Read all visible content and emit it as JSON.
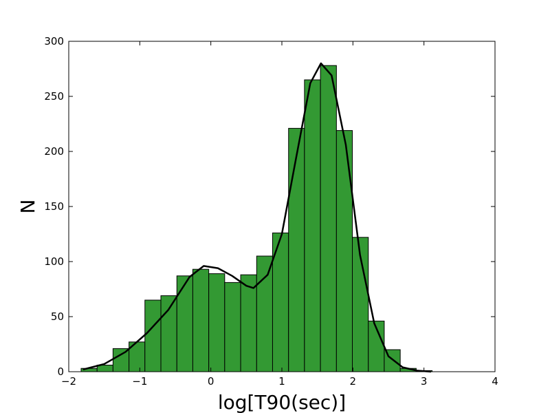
{
  "chart_data": {
    "type": "histogram",
    "xlabel": "log[T90(sec)]",
    "ylabel": "N",
    "bins": [
      -1.826,
      -1.601,
      -1.377,
      -1.152,
      -0.928,
      -0.703,
      -0.478,
      -0.254,
      -0.029,
      0.195,
      0.42,
      0.645,
      0.869,
      1.094,
      1.318,
      1.543,
      1.768,
      1.992,
      2.217,
      2.441,
      2.666,
      2.891,
      3.115
    ],
    "counts": [
      3,
      6,
      21,
      27,
      65,
      69,
      87,
      93,
      89,
      81,
      88,
      105,
      126,
      221,
      265,
      278,
      219,
      122,
      46,
      20,
      3,
      1
    ],
    "color": "#339933",
    "edgecolor": "#000000",
    "line": {
      "color": "#000000",
      "x": [
        -1.8,
        -1.5,
        -1.2,
        -0.9,
        -0.6,
        -0.3,
        -0.1,
        0.1,
        0.3,
        0.5,
        0.6,
        0.8,
        1.0,
        1.2,
        1.4,
        1.55,
        1.7,
        1.9,
        2.1,
        2.3,
        2.5,
        2.7,
        2.9,
        3.1
      ],
      "y": [
        2,
        7,
        18,
        35,
        56,
        86,
        96,
        94,
        87,
        78,
        76,
        88,
        125,
        194,
        262,
        280,
        269,
        206,
        106,
        44,
        14,
        4,
        1,
        0
      ]
    },
    "xlim": [
      -2,
      4
    ],
    "ylim": [
      0,
      300
    ],
    "xticks": [
      {
        "value": -2,
        "label": "−2"
      },
      {
        "value": -1,
        "label": "−1"
      },
      0,
      1,
      2,
      3,
      4
    ],
    "yticks": [
      0,
      50,
      100,
      150,
      200,
      250,
      300
    ]
  }
}
